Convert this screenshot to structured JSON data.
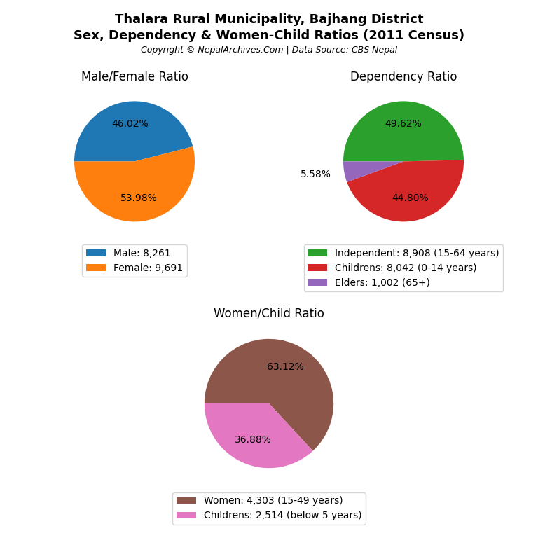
{
  "title": "Thalara Rural Municipality, Bajhang District",
  "subtitle": "Sex, Dependency & Women-Child Ratios (2011 Census)",
  "annotations": [
    "Copyright © NepalArchives.Com | Data Source: CBS Nepal"
  ],
  "chart_data": [
    {
      "type": "pie",
      "title": "Male/Female Ratio",
      "categories": [
        "Male: 8,261",
        "Female: 9,691"
      ],
      "values": [
        46.02,
        53.98
      ],
      "value_labels": [
        "46.02%",
        "53.98%"
      ],
      "data_labels": true,
      "legend": "upper center"
    },
    {
      "type": "pie",
      "title": "Dependency Ratio",
      "categories": [
        "Independent: 8,908 (15-64 years)",
        "Childrens: 8,042 (0-14 years)",
        "Elders: 1,002 (65+)"
      ],
      "values": [
        49.62,
        44.8,
        5.58
      ],
      "value_labels": [
        "49.62%",
        "44.80%",
        "5.58%"
      ],
      "data_labels": true,
      "legend": "upper center"
    },
    {
      "type": "pie",
      "title": "Women/Child Ratio",
      "categories": [
        "Women: 4,303 (15-49 years)",
        "Childrens: 2,514 (below 5 years)"
      ],
      "values": [
        63.12,
        36.88
      ],
      "value_labels": [
        "63.12%",
        "36.88%"
      ],
      "data_labels": true,
      "legend": "upper center"
    }
  ]
}
